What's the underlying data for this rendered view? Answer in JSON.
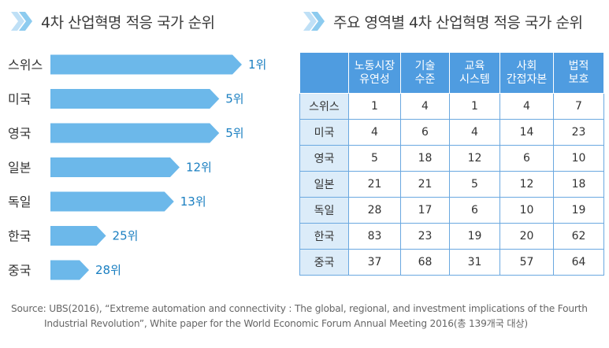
{
  "left_title": "4차 산업혁명 적응 국가 순위",
  "right_title": "주요 영역별 4차 산업혁명 적응 국가 순위",
  "chart_data": {
    "type": "bar",
    "orientation": "horizontal",
    "title": "4차 산업혁명 적응 국가 순위",
    "categories": [
      "스위스",
      "미국",
      "영국",
      "일본",
      "독일",
      "한국",
      "중국"
    ],
    "values": [
      1,
      5,
      5,
      12,
      13,
      25,
      28
    ],
    "data_labels": [
      "1위",
      "5위",
      "5위",
      "12위",
      "13위",
      "25위",
      "28위"
    ],
    "bar_color": "#6cb8ea",
    "label_color": "#1a7fc1"
  },
  "table": {
    "columns": [
      [
        "노동시장",
        "유연성"
      ],
      [
        "기술",
        "수준"
      ],
      [
        "교육",
        "시스템"
      ],
      [
        "사회",
        "간접자본"
      ],
      [
        "법적",
        "보호"
      ]
    ],
    "rows": [
      {
        "country": "스위스",
        "values": [
          "1",
          "4",
          "1",
          "4",
          "7"
        ]
      },
      {
        "country": "미국",
        "values": [
          "4",
          "6",
          "4",
          "14",
          "23"
        ]
      },
      {
        "country": "영국",
        "values": [
          "5",
          "18",
          "12",
          "6",
          "10"
        ]
      },
      {
        "country": "일본",
        "values": [
          "21",
          "21",
          "5",
          "12",
          "18"
        ]
      },
      {
        "country": "독일",
        "values": [
          "28",
          "17",
          "6",
          "10",
          "19"
        ]
      },
      {
        "country": "한국",
        "values": [
          "83",
          "23",
          "19",
          "20",
          "62"
        ]
      },
      {
        "country": "중국",
        "values": [
          "37",
          "68",
          "31",
          "57",
          "64"
        ]
      }
    ]
  },
  "source": {
    "line1": "Source: UBS(2016), “Extreme automation and connectivity : The global, regional, and investment implications of the Fourth",
    "line2": "Industrial Revolution”, White paper for the World Economic Forum Annual Meeting 2016(총 139개국 대상)"
  },
  "colors": {
    "chevron_light": "#bfe0f6",
    "chevron_dark": "#8ccbef",
    "table_header": "#4f9ce0",
    "table_row_header": "#dcecf9",
    "table_border": "#6aa8e0"
  }
}
